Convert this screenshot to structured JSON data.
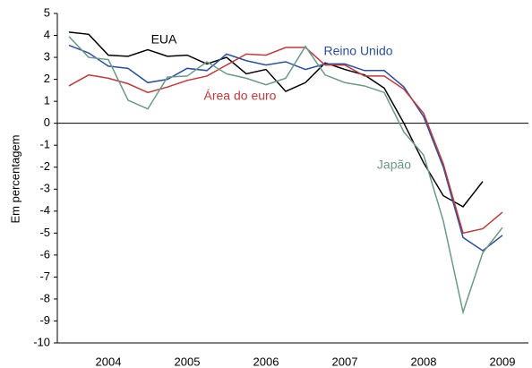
{
  "chart_data": {
    "type": "line",
    "y_label": "Em percentagem",
    "categories": [
      null,
      null,
      "2004",
      null,
      null,
      null,
      "2005",
      null,
      null,
      null,
      "2006",
      null,
      null,
      null,
      "2007",
      null,
      null,
      null,
      "2008",
      null,
      null,
      null,
      "2009"
    ],
    "series": [
      {
        "name": "EUA",
        "color": "#000000",
        "values": [
          4.15,
          4.05,
          3.1,
          3.05,
          3.35,
          3.05,
          3.1,
          2.7,
          3.0,
          2.25,
          2.45,
          1.45,
          1.85,
          2.75,
          2.45,
          2.2,
          1.6,
          0.0,
          -1.8,
          -3.3,
          -3.8,
          -2.65,
          null
        ]
      },
      {
        "name": "Reino Unido",
        "color": "#2a4fa0",
        "values": [
          3.55,
          3.2,
          2.6,
          2.5,
          1.85,
          2.0,
          2.5,
          2.4,
          3.15,
          2.85,
          2.65,
          2.8,
          2.45,
          2.7,
          2.7,
          2.4,
          2.4,
          1.65,
          0.3,
          -2.0,
          -5.2,
          -5.8,
          -5.1
        ]
      },
      {
        "name": "Área do euro",
        "color": "#c0393b",
        "values": [
          1.7,
          2.2,
          2.05,
          1.8,
          1.4,
          1.65,
          1.95,
          2.15,
          2.65,
          3.15,
          3.1,
          3.45,
          3.45,
          2.65,
          2.65,
          2.15,
          2.15,
          1.55,
          0.45,
          -1.85,
          -5.0,
          -4.8,
          -4.05
        ]
      },
      {
        "name": "Japão",
        "color": "#6a9a85",
        "values": [
          3.95,
          3.0,
          2.9,
          1.05,
          0.65,
          2.1,
          2.15,
          2.8,
          2.25,
          2.05,
          1.75,
          2.05,
          3.5,
          2.2,
          1.85,
          1.7,
          1.4,
          -0.4,
          -1.45,
          -4.45,
          -8.6,
          -5.9,
          -4.75
        ]
      }
    ],
    "ylim": [
      -10,
      5
    ],
    "yticks": [
      -10,
      -9,
      -8,
      -7,
      -6,
      -5,
      -4,
      -3,
      -2,
      -1,
      0,
      1,
      2,
      3,
      4,
      5
    ]
  }
}
